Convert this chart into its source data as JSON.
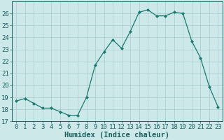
{
  "xlabel": "Humidex (Indice chaleur)",
  "ylabel": "",
  "x": [
    0,
    1,
    2,
    3,
    4,
    5,
    6,
    7,
    8,
    9,
    10,
    11,
    12,
    13,
    14,
    15,
    16,
    17,
    18,
    19,
    20,
    21,
    22,
    23
  ],
  "y": [
    18.7,
    18.9,
    18.5,
    18.1,
    18.1,
    17.8,
    17.5,
    17.5,
    19.0,
    21.7,
    22.8,
    23.8,
    23.1,
    24.5,
    26.1,
    26.3,
    25.8,
    25.8,
    26.1,
    26.0,
    23.7,
    22.3,
    19.9,
    18.2
  ],
  "line_color": "#1a7a6e",
  "marker": "D",
  "marker_size": 2.0,
  "bg_color": "#cce8e8",
  "grid_color": "#a8cccc",
  "tick_color": "#1a5f5f",
  "label_color": "#1a5f5f",
  "ylim": [
    17,
    27
  ],
  "yticks": [
    17,
    18,
    19,
    20,
    21,
    22,
    23,
    24,
    25,
    26
  ],
  "xlim": [
    -0.5,
    23.5
  ],
  "xlabel_fontsize": 7.5,
  "tick_fontsize": 6.5
}
